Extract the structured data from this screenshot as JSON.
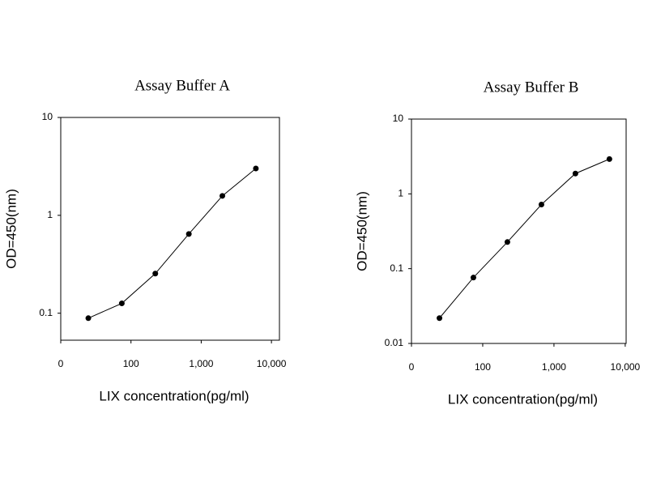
{
  "chart_data": [
    {
      "type": "line",
      "title": "Assay Buffer A",
      "x_label": "LIX concentration(pg/ml)",
      "y_label": "OD=450(nm)",
      "x": [
        24.7,
        74,
        222,
        667,
        2000,
        6000
      ],
      "series": [
        {
          "color": "#000000",
          "values": [
            0.089,
            0.126,
            0.254,
            0.645,
            1.58,
            3.01
          ]
        }
      ],
      "xscale": "log",
      "yscale": "log",
      "xlim": [
        10,
        13000
      ],
      "xticks": [
        {
          "value": 10,
          "label": "0"
        },
        100,
        {
          "value": 1000,
          "label": "1,000"
        },
        {
          "value": 10000,
          "label": "10,000"
        }
      ],
      "ylim": [
        0.053,
        10
      ],
      "yticks": [
        0.1,
        1,
        10
      ]
    },
    {
      "type": "line",
      "title": "Assay Buffer B",
      "x_label": "LIX concentration(pg/ml)",
      "y_label": "OD=450(nm)",
      "x": [
        24.7,
        74,
        222,
        667,
        2000,
        6000
      ],
      "series": [
        {
          "color": "#000000",
          "values": [
            0.0218,
            0.076,
            0.227,
            0.72,
            1.87,
            2.92
          ]
        }
      ],
      "xscale": "log",
      "yscale": "log",
      "xlim": [
        10,
        10300
      ],
      "xticks": [
        {
          "value": 10,
          "label": "0"
        },
        100,
        {
          "value": 1000,
          "label": "1,000"
        },
        {
          "value": 10000,
          "label": "10,000"
        }
      ],
      "ylim": [
        0.01,
        10
      ],
      "yticks": [
        0.01,
        0.1,
        1,
        10
      ]
    }
  ]
}
